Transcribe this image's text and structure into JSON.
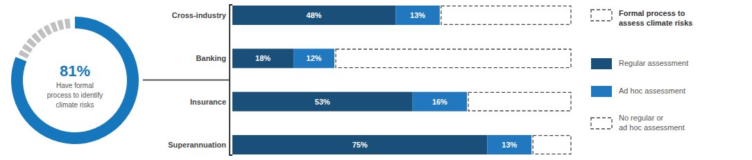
{
  "chart_data": [
    {
      "type": "donut",
      "values": [
        81,
        19
      ],
      "value_labels": [
        "81%",
        null
      ],
      "colors": [
        "#1777bc",
        "#c0c0c0"
      ],
      "annotations": [
        "Have formal\nprocess to identify\nclimate risks"
      ]
    },
    {
      "type": "bar",
      "orientation": "horizontal",
      "stacked": true,
      "title": "Formal process to\nassess climate risks",
      "categories": [
        "Cross-industry",
        "Banking",
        "Insurance",
        "Superannuation"
      ],
      "series": [
        {
          "name": "Regular assessment",
          "color": "#1a4f7a",
          "values": [
            48,
            18,
            53,
            75
          ],
          "data_labels": true,
          "value_labels": [
            "48%",
            "18%",
            "53%",
            "75%"
          ]
        },
        {
          "name": "Ad hoc assessment",
          "color": "#2278bf",
          "values": [
            13,
            12,
            16,
            13
          ],
          "data_labels": true,
          "value_labels": [
            "13%",
            "12%",
            "16%",
            "13%"
          ]
        },
        {
          "name": "No regular or\nad hoc assessment",
          "color": "#ffffff",
          "line_style": "dashed",
          "values": [
            39,
            70,
            31,
            12
          ],
          "data_labels": false
        }
      ],
      "xlim": [
        0,
        100
      ],
      "tick_labels": false,
      "grid": false,
      "legend": "right"
    }
  ]
}
